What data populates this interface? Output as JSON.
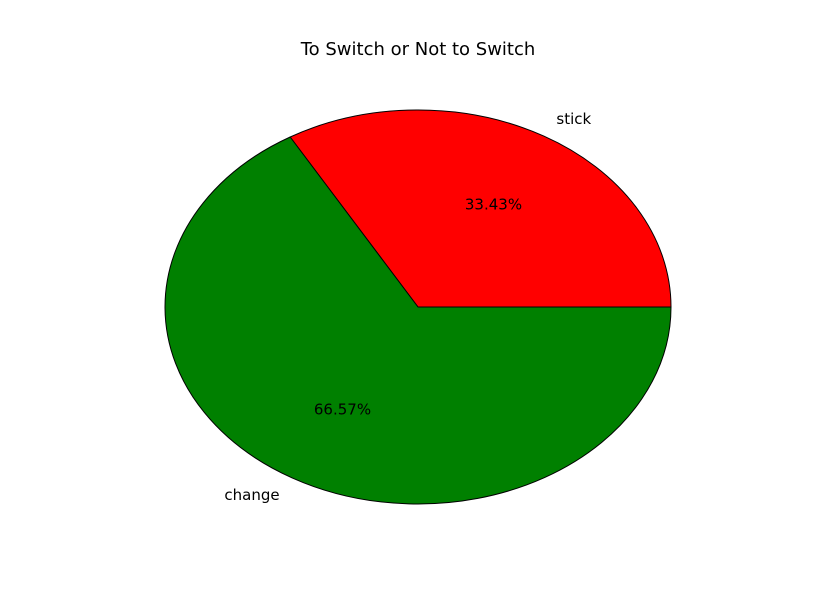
{
  "chart_data": {
    "type": "pie",
    "title": "To Switch or Not to Switch",
    "slices": [
      {
        "label": "stick",
        "value": 33.43,
        "pct_label": "33.43%",
        "color": "#ff0000"
      },
      {
        "label": "change",
        "value": 66.57,
        "pct_label": "66.57%",
        "color": "#008000"
      }
    ],
    "start_angle_deg": 0,
    "direction": "counterclockwise",
    "wedge_edge_color": "#000000"
  }
}
